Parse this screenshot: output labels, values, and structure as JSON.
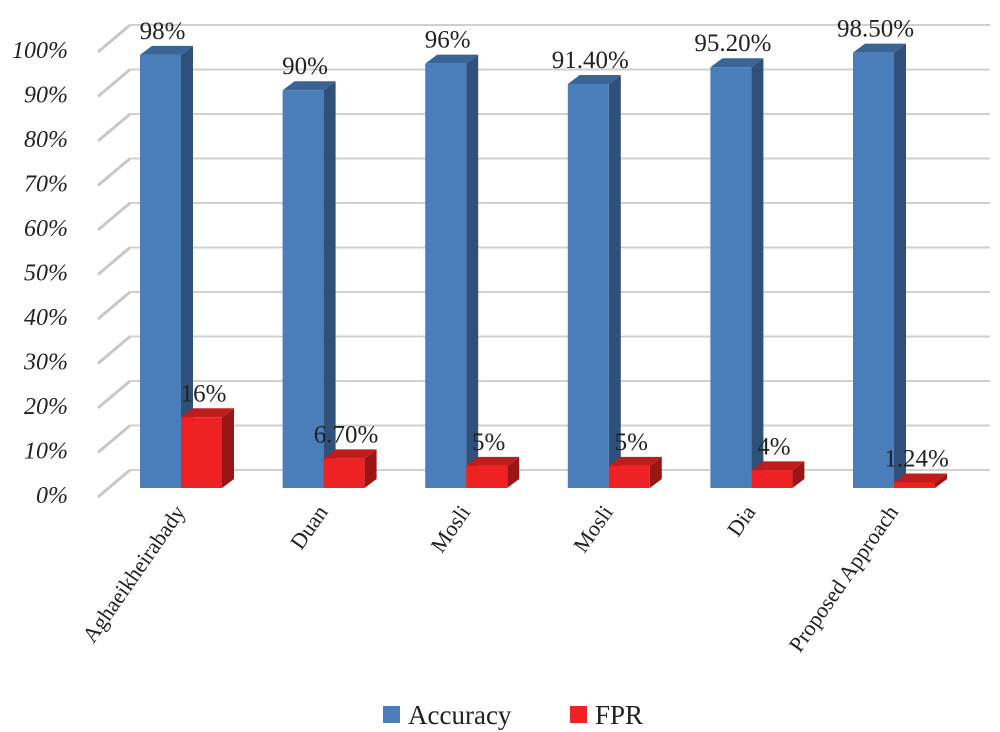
{
  "chart_data": {
    "type": "bar",
    "subtype": "3d-clustered",
    "title": "",
    "xlabel": "",
    "ylabel": "",
    "categories": [
      "Aghaeikheirabady",
      "Duan",
      "Mosli",
      "Mosli",
      "Dia",
      "Proposed Approach"
    ],
    "series": [
      {
        "name": "Accuracy",
        "color": "#4a7ebb",
        "values": [
          98,
          90,
          96,
          91.4,
          95.2,
          98.5
        ],
        "labels": [
          "98%",
          "90%",
          "96%",
          "91.40%",
          "95.20%",
          "98.50%"
        ]
      },
      {
        "name": "FPR",
        "color": "#ee2222",
        "values": [
          16,
          6.7,
          5,
          5,
          4,
          1.24
        ],
        "labels": [
          "16%",
          "6.70%",
          "5%",
          "5%",
          "4%",
          "1.24%"
        ]
      }
    ],
    "ylim": [
      0,
      100
    ],
    "yticks": [
      "0%",
      "10%",
      "20%",
      "30%",
      "40%",
      "50%",
      "60%",
      "70%",
      "80%",
      "90%",
      "100%"
    ],
    "grid": true,
    "legend": "bottom"
  }
}
